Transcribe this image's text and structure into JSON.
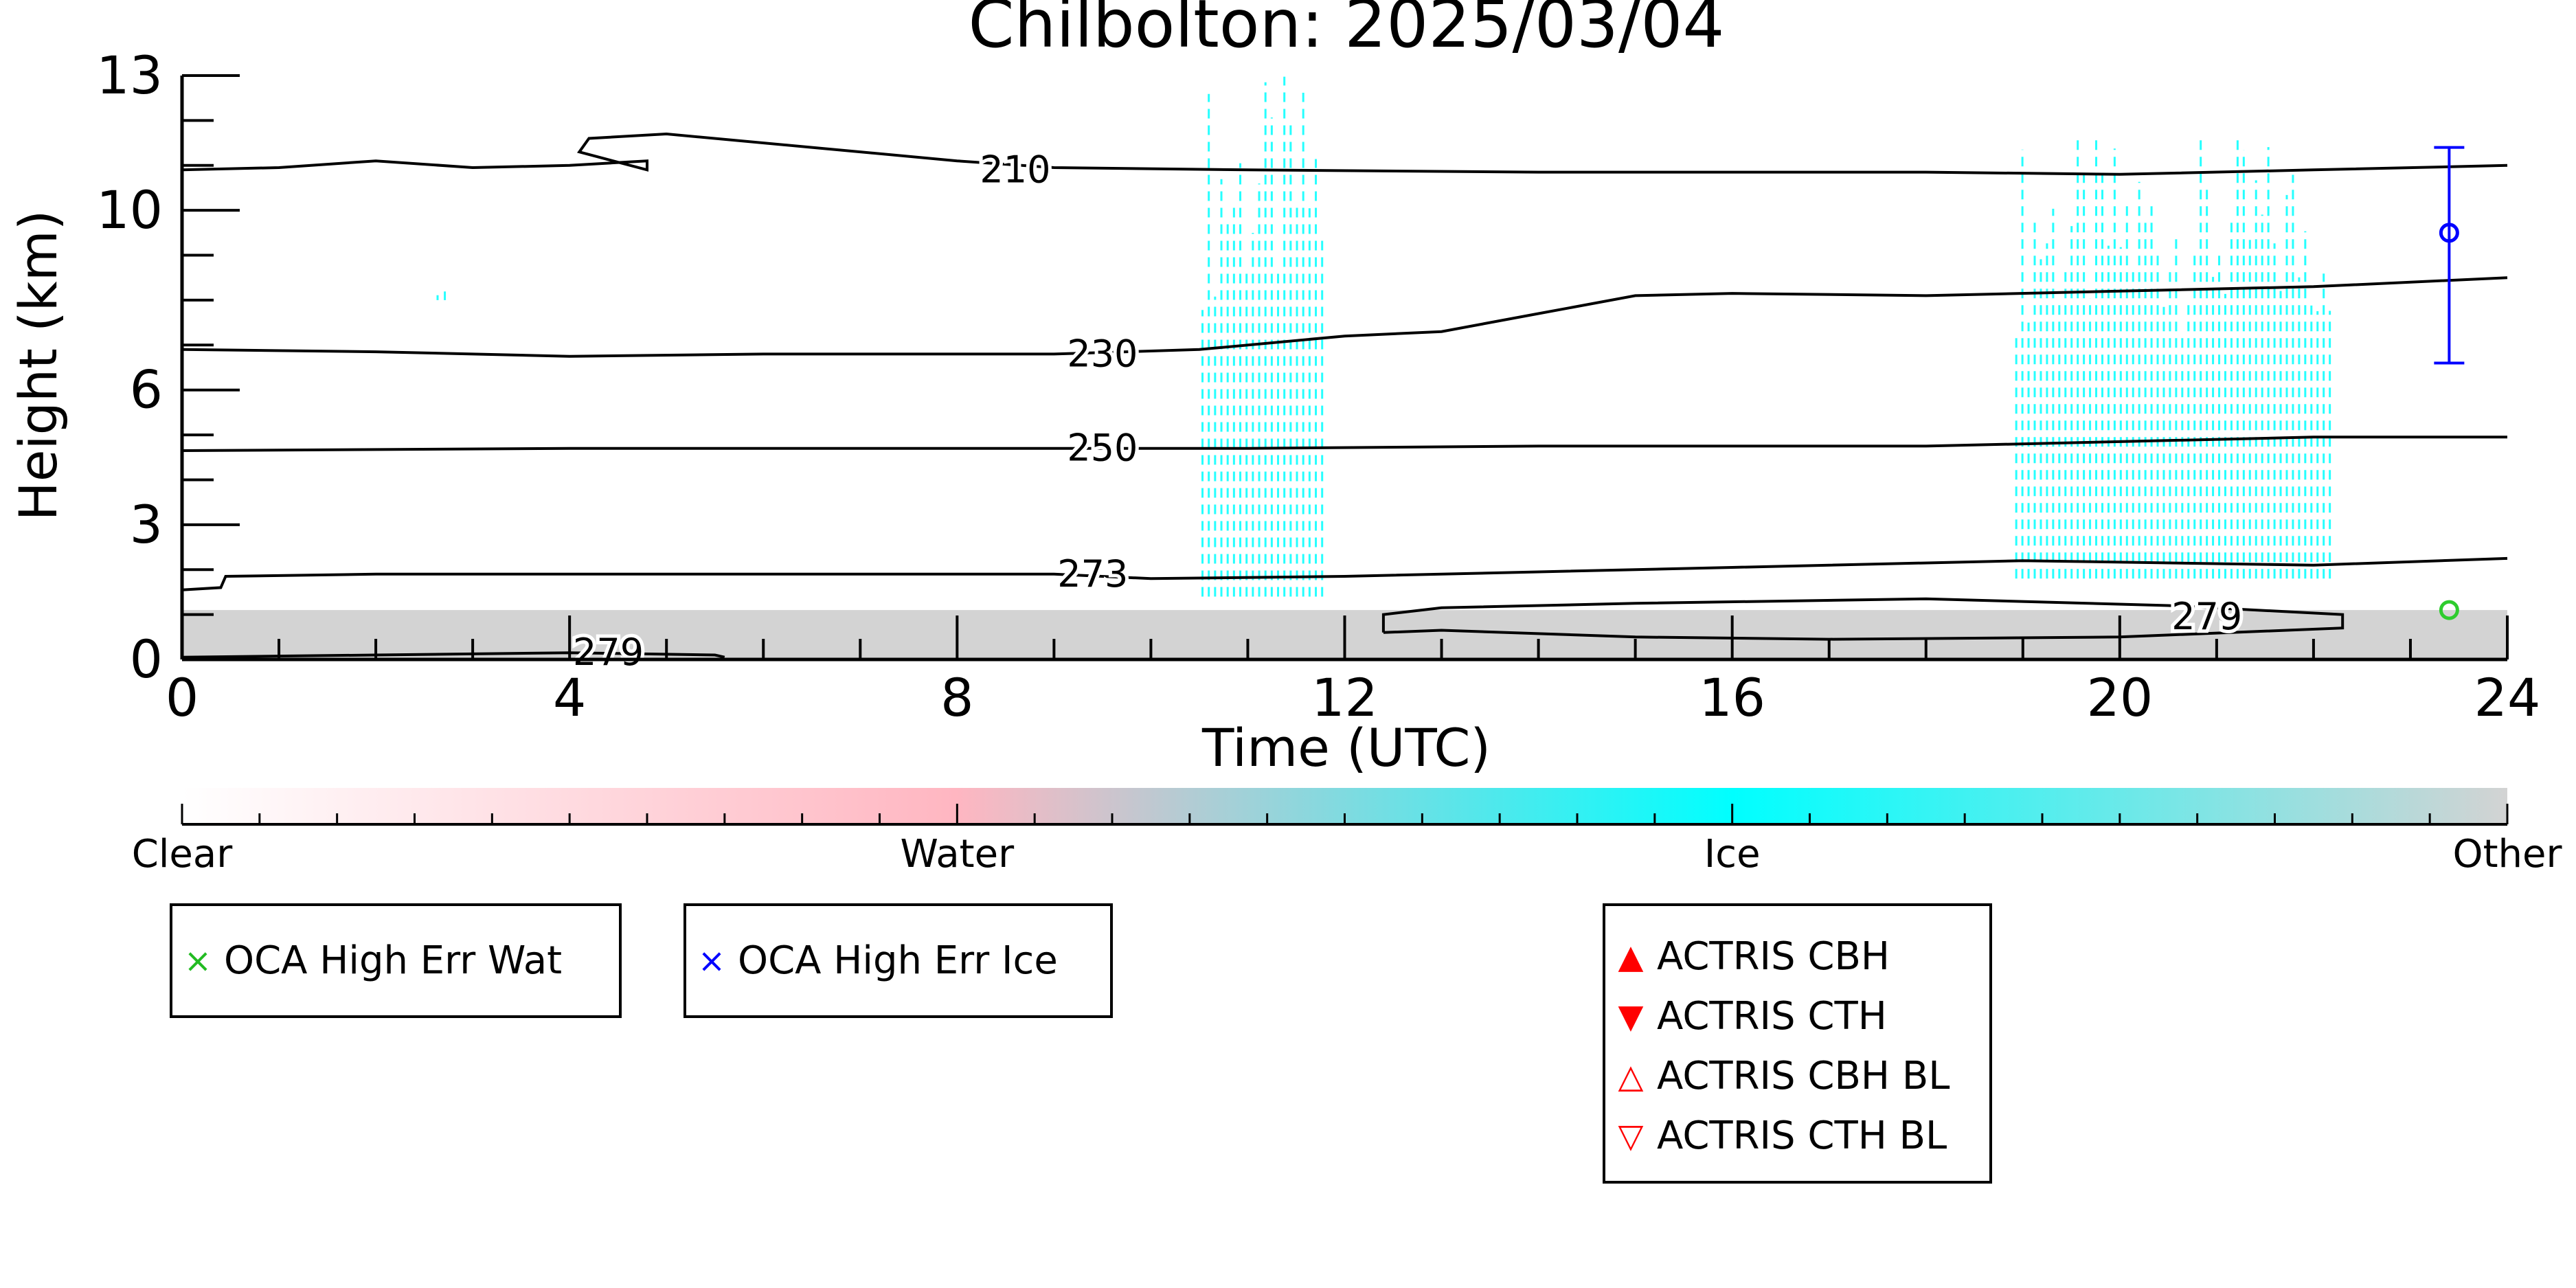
{
  "chart_data": {
    "type": "heatmap",
    "title": "Chilbolton: 2025/03/04",
    "xlabel": "Time (UTC)",
    "ylabel": "Height (km)",
    "xlim": [
      0,
      24
    ],
    "ylim": [
      0,
      13
    ],
    "x_ticks": [
      0,
      4,
      8,
      12,
      16,
      20,
      24
    ],
    "y_ticks": [
      0,
      3,
      6,
      10,
      13
    ],
    "grid": false,
    "colorbar": {
      "labels": [
        {
          "text": "Clear",
          "value": 0
        },
        {
          "text": "Water",
          "value": 1
        },
        {
          "text": "Ice",
          "value": 2
        },
        {
          "text": "Other",
          "value": 3
        }
      ],
      "colors": [
        "#ffffff",
        "#ffb6c1",
        "#00ffff",
        "#d3d3d3"
      ]
    },
    "contours": [
      {
        "label": "210",
        "points": [
          [
            0,
            10.9
          ],
          [
            1,
            10.95
          ],
          [
            2,
            11.1
          ],
          [
            3,
            10.95
          ],
          [
            4,
            11.0
          ],
          [
            4.8,
            11.1
          ],
          [
            4.8,
            10.9
          ],
          [
            4.1,
            11.3
          ],
          [
            4.2,
            11.6
          ],
          [
            5,
            11.7
          ],
          [
            6.5,
            11.4
          ],
          [
            8,
            11.1
          ],
          [
            9,
            10.95
          ],
          [
            11,
            10.9
          ],
          [
            14,
            10.85
          ],
          [
            18,
            10.85
          ],
          [
            20,
            10.8
          ],
          [
            22,
            10.9
          ],
          [
            24,
            11.0
          ]
        ]
      },
      {
        "label": "230",
        "points": [
          [
            0,
            6.9
          ],
          [
            2,
            6.85
          ],
          [
            4,
            6.75
          ],
          [
            6,
            6.8
          ],
          [
            9,
            6.8
          ],
          [
            10.5,
            6.9
          ],
          [
            12,
            7.2
          ],
          [
            13,
            7.3
          ],
          [
            14,
            7.7
          ],
          [
            15,
            8.1
          ],
          [
            16,
            8.15
          ],
          [
            18,
            8.1
          ],
          [
            20,
            8.2
          ],
          [
            22,
            8.3
          ],
          [
            24,
            8.5
          ]
        ]
      },
      {
        "label": "250",
        "points": [
          [
            0,
            4.65
          ],
          [
            4,
            4.7
          ],
          [
            8,
            4.7
          ],
          [
            11,
            4.7
          ],
          [
            14,
            4.75
          ],
          [
            18,
            4.75
          ],
          [
            20,
            4.85
          ],
          [
            22,
            4.95
          ],
          [
            24,
            4.95
          ]
        ]
      },
      {
        "label": "273",
        "points": [
          [
            0,
            1.55
          ],
          [
            0.4,
            1.6
          ],
          [
            0.45,
            1.85
          ],
          [
            2,
            1.9
          ],
          [
            6,
            1.9
          ],
          [
            9,
            1.9
          ],
          [
            10,
            1.8
          ],
          [
            12,
            1.85
          ],
          [
            14,
            1.95
          ],
          [
            16,
            2.05
          ],
          [
            19,
            2.2
          ],
          [
            22,
            2.1
          ],
          [
            24,
            2.25
          ]
        ]
      },
      {
        "label": "279",
        "points": [
          [
            12.4,
            0.6
          ],
          [
            12.4,
            1.0
          ],
          [
            13,
            1.15
          ],
          [
            15,
            1.25
          ],
          [
            18,
            1.35
          ],
          [
            20.5,
            1.2
          ],
          [
            22.3,
            1.0
          ],
          [
            22.3,
            0.7
          ],
          [
            20,
            0.5
          ],
          [
            17,
            0.45
          ],
          [
            15,
            0.5
          ],
          [
            13,
            0.65
          ],
          [
            12.4,
            0.6
          ]
        ]
      },
      {
        "label": "279",
        "points": [
          [
            0,
            0.05
          ],
          [
            2,
            0.1
          ],
          [
            4,
            0.15
          ],
          [
            5.5,
            0.1
          ],
          [
            5.6,
            0.05
          ]
        ]
      }
    ],
    "contour_labels": [
      {
        "text": "210",
        "x": 8.6,
        "y": 10.9
      },
      {
        "text": "230",
        "x": 9.5,
        "y": 6.8
      },
      {
        "text": "250",
        "x": 9.5,
        "y": 4.7
      },
      {
        "text": "273",
        "x": 9.4,
        "y": 1.9
      },
      {
        "text": "279",
        "x": 20.9,
        "y": 0.95
      },
      {
        "text": "279",
        "x": 4.4,
        "y": 0.15
      }
    ],
    "regions": [
      {
        "class": "Other",
        "x": [
          0,
          24
        ],
        "y": [
          0,
          1.1
        ]
      },
      {
        "class": "Ice",
        "x": [
          10.5,
          11.8
        ],
        "y": [
          1.4,
          13
        ]
      },
      {
        "class": "Ice",
        "x": [
          18.9,
          22.2
        ],
        "y": [
          1.8,
          11.7
        ]
      },
      {
        "class": "Ice",
        "x": [
          2.6,
          2.75
        ],
        "y": [
          8.0,
          8.2
        ]
      }
    ],
    "error_bar": {
      "x": 23.4,
      "y": 9.5,
      "ymin": 6.6,
      "ymax": 11.4,
      "color": "#0000ff"
    },
    "water_marker": {
      "x": 23.4,
      "y": 1.1,
      "color": "#2ecc2e"
    }
  },
  "legend_oca_wat": {
    "label": "OCA High Err Wat",
    "symbol": "×",
    "color": "#22bb22"
  },
  "legend_oca_ice": {
    "label": "OCA High Err Ice",
    "symbol": "×",
    "color": "#0000ff"
  },
  "legend_actris": [
    {
      "label": "ACTRIS CBH",
      "symbol": "▲",
      "color": "#ff0000"
    },
    {
      "label": "ACTRIS CTH",
      "symbol": "▼",
      "color": "#ff0000"
    },
    {
      "label": "ACTRIS CBH BL",
      "symbol": "△",
      "color": "#ff0000"
    },
    {
      "label": "ACTRIS CTH BL",
      "symbol": "▽",
      "color": "#ff0000"
    }
  ]
}
